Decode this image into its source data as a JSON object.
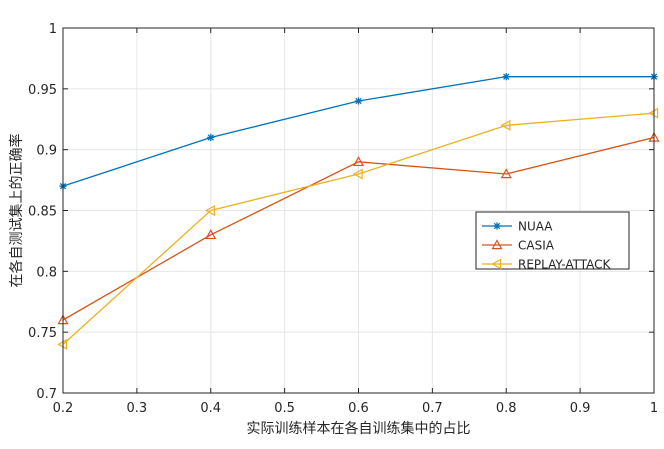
{
  "chart_data": {
    "type": "line",
    "title": "",
    "xlabel": "实际训练样本在各自训练集中的占比",
    "ylabel": "在各自测试集上的正确率",
    "xlim": [
      0.2,
      1.0
    ],
    "ylim": [
      0.7,
      1.0
    ],
    "x_ticks": [
      "0.2",
      "0.3",
      "0.4",
      "0.5",
      "0.6",
      "0.7",
      "0.8",
      "0.9",
      "1"
    ],
    "y_ticks": [
      "0.7",
      "0.75",
      "0.8",
      "0.85",
      "0.9",
      "0.95",
      "1"
    ],
    "grid": true,
    "legend_position": "right",
    "x": [
      0.2,
      0.4,
      0.6,
      0.8,
      1.0
    ],
    "series": [
      {
        "name": "NUAA",
        "values": [
          0.87,
          0.91,
          0.94,
          0.96,
          0.96
        ],
        "color": "#0072BD",
        "marker": "asterisk"
      },
      {
        "name": "CASIA",
        "values": [
          0.76,
          0.83,
          0.89,
          0.88,
          0.91
        ],
        "color": "#D95319",
        "marker": "triangle-up"
      },
      {
        "name": "REPLAY-ATTACK",
        "values": [
          0.74,
          0.85,
          0.88,
          0.92,
          0.93
        ],
        "color": "#EDB120",
        "marker": "triangle-left"
      }
    ]
  }
}
